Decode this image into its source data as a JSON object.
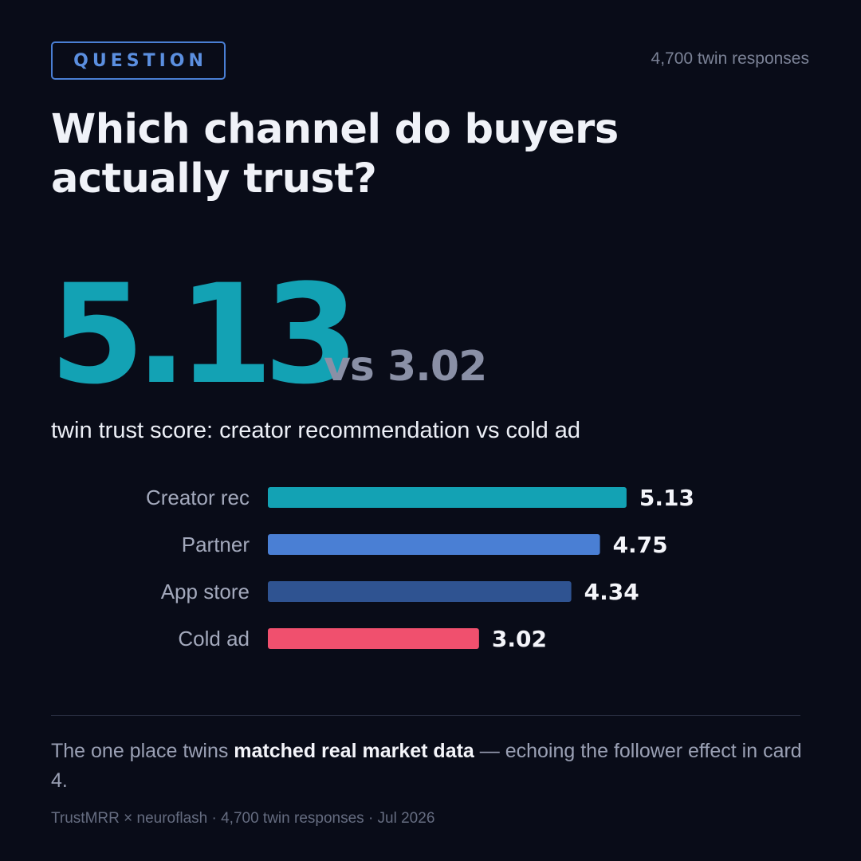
{
  "header": {
    "badge": "QUESTION",
    "responses": "4,700 twin responses"
  },
  "headline": {
    "line1": "Which channel do buyers",
    "line2": "actually trust?"
  },
  "stat": {
    "big": "5.13",
    "vs": "vs 3.02",
    "caption": "twin trust score: creator recommendation vs cold ad"
  },
  "chart_data": {
    "type": "bar",
    "orientation": "horizontal",
    "title": "",
    "xlabel": "",
    "ylabel": "",
    "grid": false,
    "categories": [
      "Creator rec",
      "Partner",
      "App store",
      "Cold ad"
    ],
    "values": [
      5.13,
      4.75,
      4.34,
      3.02
    ],
    "value_labels": [
      "5.13",
      "4.75",
      "4.34",
      "3.02"
    ],
    "colors": [
      "#13a2b4",
      "#4a7fd4",
      "#2f5391",
      "#f0506e"
    ]
  },
  "footer": {
    "note_before": "The one place twins ",
    "note_bold": "matched real market data",
    "note_after": " — echoing the follower effect in card 4.",
    "credit": "TrustMRR × neuroflash · 4,700 twin responses · Jul 2026"
  },
  "colors": {
    "background": "#090c18",
    "accent": "#13a2b4",
    "badge": "#4a7fd4",
    "muted": "#8a90a6"
  }
}
